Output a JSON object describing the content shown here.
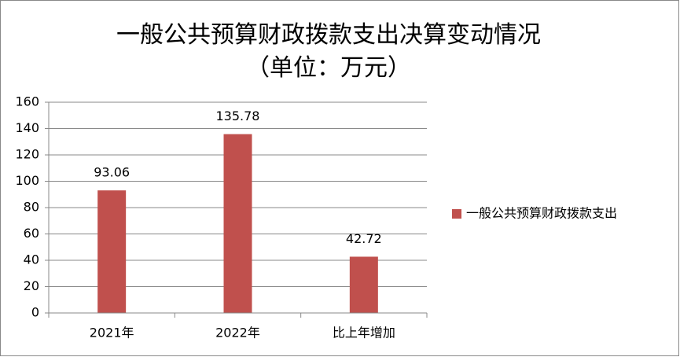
{
  "chart_data": {
    "type": "bar",
    "title": "一般公共预算财政拨款支出决算变动情况",
    "subtitle": "（单位：万元）",
    "categories": [
      "2021年",
      "2022年",
      "比上年增加"
    ],
    "series": [
      {
        "name": "一般公共预算财政拨款支出",
        "color": "#c0504d",
        "values": [
          93.06,
          135.78,
          42.72
        ]
      }
    ],
    "ylim": [
      0,
      160
    ],
    "yticks": [
      0,
      20,
      40,
      60,
      80,
      100,
      120,
      140,
      160
    ],
    "grid": true,
    "legend": "right"
  }
}
